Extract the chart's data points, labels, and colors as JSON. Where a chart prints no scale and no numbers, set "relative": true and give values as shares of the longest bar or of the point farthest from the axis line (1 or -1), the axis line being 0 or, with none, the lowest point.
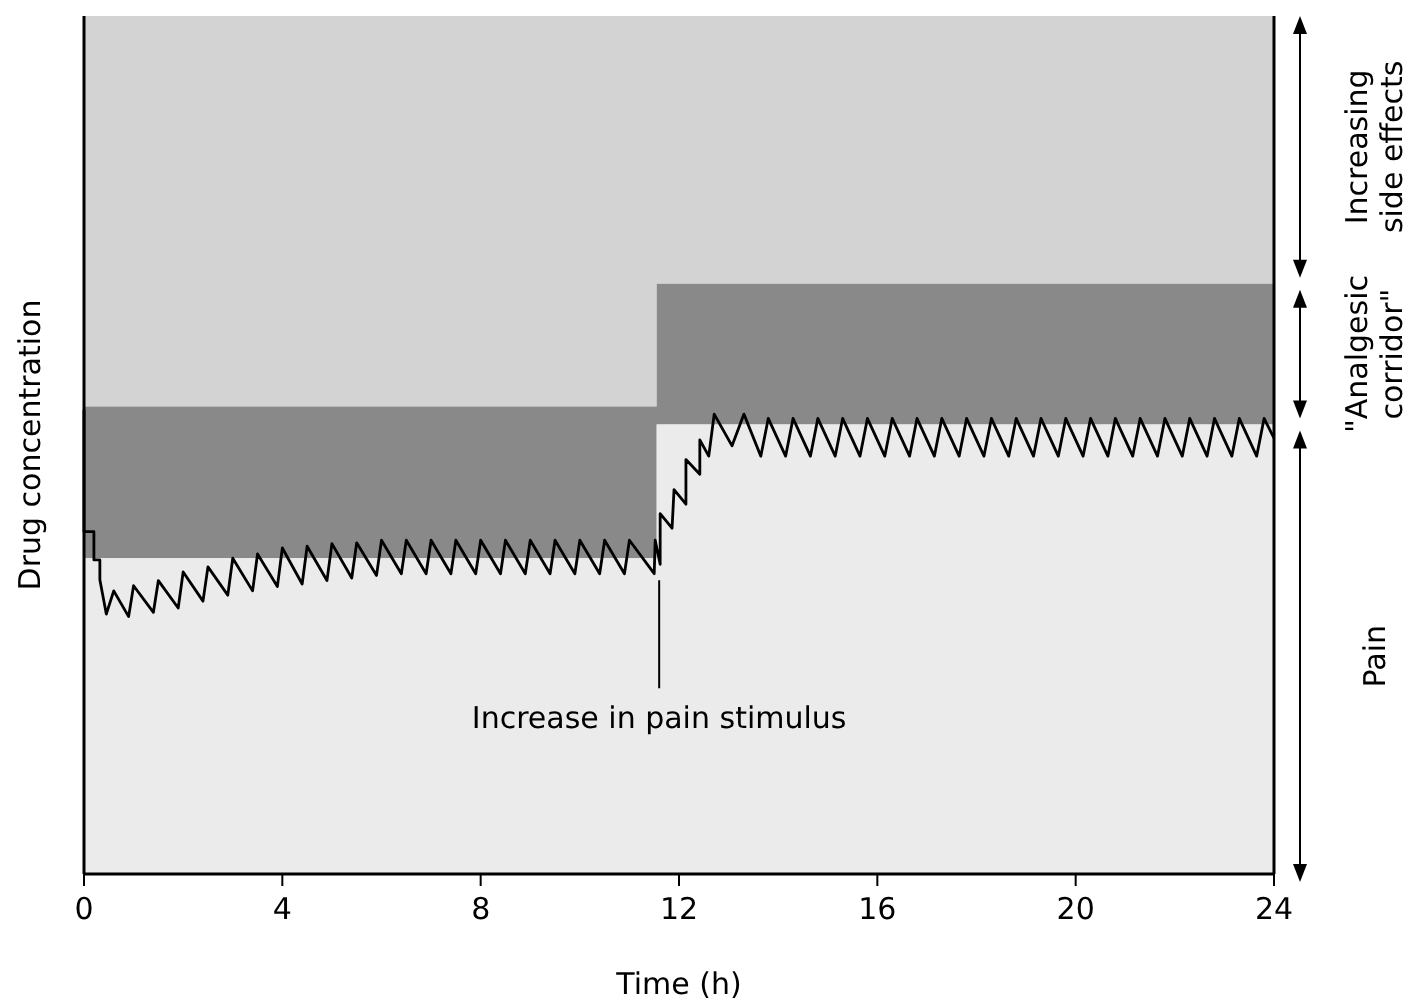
{
  "chart_data": {
    "type": "area",
    "relative": true,
    "xlabel": "Time (h)",
    "ylabel": "Drug concentration",
    "xlim": [
      0,
      24
    ],
    "xticks": [
      0,
      4,
      8,
      12,
      16,
      20,
      24
    ],
    "annotations": [
      {
        "text": "Increase in pain stimulus",
        "x": 11.6,
        "y": 0.361
      }
    ],
    "series": [
      {
        "name": "Increasing side effects",
        "color": "#d3d3d3",
        "x": [
          0,
          11.55,
          11.55,
          24
        ],
        "values": [
          1,
          1,
          1,
          1
        ]
      },
      {
        "name": "\"Analgesic corridor\"",
        "color": "#898989",
        "x": [
          0,
          11.55,
          11.55,
          24
        ],
        "values": [
          0.545,
          0.545,
          0.688,
          0.688
        ]
      },
      {
        "name": "Pain",
        "color": "#ebebeb",
        "x": [
          0,
          11.55,
          11.55,
          24
        ],
        "values": [
          0.368,
          0.368,
          0.524,
          0.524
        ]
      },
      {
        "type": "line",
        "color": "#000000",
        "x": [
          0,
          0,
          0.2,
          0.2,
          0.32,
          0.32,
          0.45,
          0.6,
          0.9,
          1.0,
          1.4,
          1.5,
          1.9,
          2.0,
          2.4,
          2.5,
          2.9,
          3.0,
          3.4,
          3.5,
          3.9,
          4.0,
          4.4,
          4.5,
          4.9,
          5.0,
          5.4,
          5.5,
          5.9,
          6.0,
          6.4,
          6.5,
          6.9,
          7.0,
          7.4,
          7.5,
          7.9,
          8.0,
          8.4,
          8.5,
          8.9,
          9.0,
          9.4,
          9.5,
          9.9,
          10.0,
          10.4,
          10.5,
          10.9,
          11.0,
          11.5,
          11.52,
          11.62,
          11.62,
          11.86,
          11.9,
          12.14,
          12.14,
          12.42,
          12.42,
          12.6,
          12.71,
          13.07,
          13.31,
          13.65,
          13.8,
          14.15,
          14.3,
          14.65,
          14.8,
          15.15,
          15.3,
          15.65,
          15.8,
          16.15,
          16.3,
          16.65,
          16.8,
          17.15,
          17.3,
          17.65,
          17.8,
          18.15,
          18.3,
          18.65,
          18.8,
          19.15,
          19.3,
          19.65,
          19.8,
          20.15,
          20.3,
          20.65,
          20.8,
          21.15,
          21.3,
          21.65,
          21.8,
          22.15,
          22.3,
          22.65,
          22.8,
          23.15,
          23.3,
          23.65,
          23.8,
          24.0
        ],
        "values": [
          0.541,
          0.399,
          0.399,
          0.366,
          0.366,
          0.343,
          0.303,
          0.33,
          0.3,
          0.336,
          0.305,
          0.342,
          0.31,
          0.352,
          0.318,
          0.358,
          0.325,
          0.368,
          0.33,
          0.373,
          0.335,
          0.38,
          0.338,
          0.382,
          0.342,
          0.385,
          0.345,
          0.386,
          0.348,
          0.389,
          0.35,
          0.389,
          0.35,
          0.389,
          0.35,
          0.389,
          0.35,
          0.389,
          0.35,
          0.389,
          0.35,
          0.389,
          0.35,
          0.389,
          0.35,
          0.389,
          0.35,
          0.389,
          0.35,
          0.389,
          0.35,
          0.389,
          0.361,
          0.42,
          0.403,
          0.448,
          0.431,
          0.483,
          0.466,
          0.506,
          0.487,
          0.536,
          0.499,
          0.536,
          0.487,
          0.531,
          0.487,
          0.531,
          0.487,
          0.531,
          0.487,
          0.531,
          0.487,
          0.531,
          0.487,
          0.531,
          0.487,
          0.531,
          0.487,
          0.531,
          0.487,
          0.531,
          0.487,
          0.531,
          0.487,
          0.531,
          0.487,
          0.531,
          0.487,
          0.531,
          0.487,
          0.531,
          0.487,
          0.531,
          0.487,
          0.531,
          0.487,
          0.531,
          0.487,
          0.531,
          0.487,
          0.531,
          0.487,
          0.531,
          0.487,
          0.531,
          0.508
        ]
      }
    ]
  }
}
